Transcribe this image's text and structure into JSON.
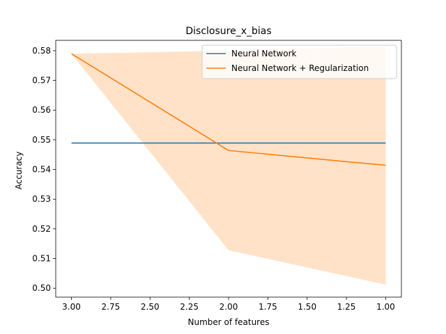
{
  "chart_data": {
    "type": "line",
    "title": "Disclosure_x_bias",
    "xlabel": "Number of features",
    "ylabel": "Accuracy",
    "x_inverted": true,
    "xlim": [
      3.1,
      0.9
    ],
    "ylim": [
      0.497,
      0.5835
    ],
    "xticks": [
      3.0,
      2.75,
      2.5,
      2.25,
      2.0,
      1.75,
      1.5,
      1.25,
      1.0
    ],
    "xtick_labels": [
      "3.00",
      "2.75",
      "2.50",
      "2.25",
      "2.00",
      "1.75",
      "1.50",
      "1.25",
      "1.00"
    ],
    "yticks": [
      0.5,
      0.51,
      0.52,
      0.53,
      0.54,
      0.55,
      0.56,
      0.57,
      0.58
    ],
    "ytick_labels": [
      "0.50",
      "0.51",
      "0.52",
      "0.53",
      "0.54",
      "0.55",
      "0.56",
      "0.57",
      "0.58"
    ],
    "grid": false,
    "legend_position": "top-right",
    "series": [
      {
        "name": "Neural Network",
        "color": "#1f77b4",
        "x": [
          3.0,
          2.0,
          1.0
        ],
        "values": [
          0.5489,
          0.5489,
          0.5489
        ]
      },
      {
        "name": "Neural Network + Regularization",
        "color": "#ff7f0e",
        "x": [
          3.0,
          2.0,
          1.0
        ],
        "values": [
          0.579,
          0.5464,
          0.5414
        ],
        "band_lower": [
          0.579,
          0.5128,
          0.5012
        ],
        "band_upper": [
          0.579,
          0.58,
          0.5815
        ],
        "band_color": "#ffe2c8"
      }
    ]
  }
}
